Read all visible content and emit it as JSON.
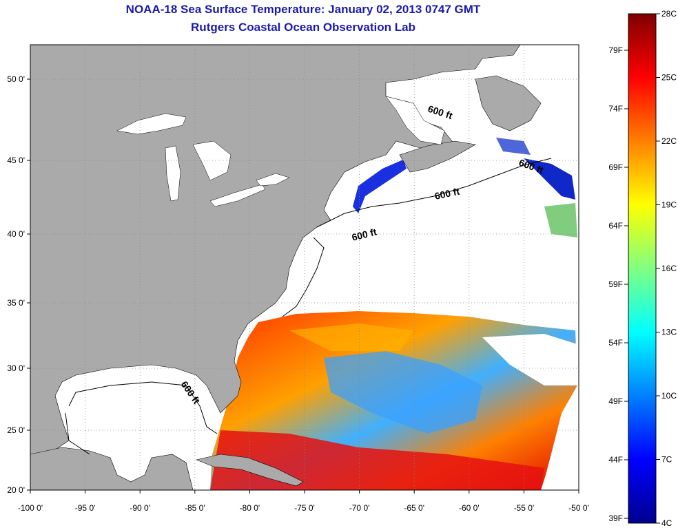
{
  "title": "NOAA-18 Sea Surface Temperature:  January 02, 2013 0747 GMT",
  "subtitle": "Rutgers Coastal Ocean Observation Lab",
  "map": {
    "lon_ticks": [
      "-100 0'",
      "-95 0'",
      "-90 0'",
      "-85 0'",
      "-80 0'",
      "-75 0'",
      "-70 0'",
      "-65 0'",
      "-60 0'",
      "-55 0'",
      "-50 0'"
    ],
    "lat_ticks": [
      "50 0'",
      "45 0'",
      "40 0'",
      "35 0'",
      "30 0'",
      "25 0'",
      "20 0'"
    ],
    "contour_label": "600 ft",
    "colors": {
      "land": "#aaaaaa",
      "no_data": "#ffffff",
      "grid": "#888888"
    }
  },
  "colorbar": {
    "celsius": [
      "28C",
      "25C",
      "22C",
      "19C",
      "16C",
      "13C",
      "10C",
      "7C",
      "4C"
    ],
    "fahrenheit": [
      "79F",
      "74F",
      "69F",
      "64F",
      "59F",
      "54F",
      "49F",
      "44F",
      "39F"
    ],
    "colors": [
      "#7f0000",
      "#ff0000",
      "#ff8000",
      "#ffff00",
      "#80ff80",
      "#00ffff",
      "#0080ff",
      "#0000ff",
      "#00008f"
    ]
  }
}
